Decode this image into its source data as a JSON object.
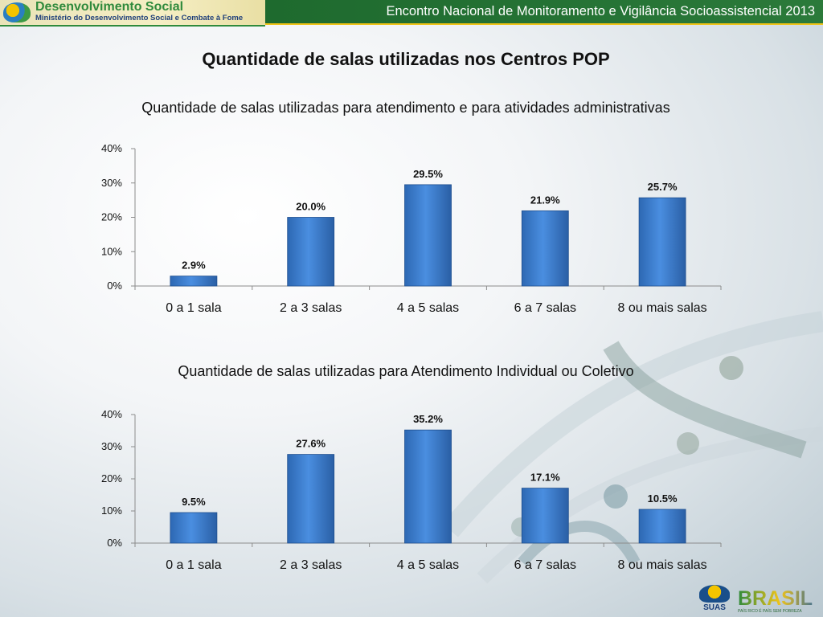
{
  "header": {
    "brand_title": "Desenvolvimento Social",
    "brand_subtitle": "Ministério do Desenvolvimento Social e Combate à Fome",
    "event_title": "Encontro Nacional de Monitoramento e Vigilância Socioassistencial 2013"
  },
  "page_title": "Quantidade de salas utilizadas nos Centros POP",
  "chart_data": [
    {
      "type": "bar",
      "title": "Quantidade de salas utilizadas para atendimento e para atividades administrativas",
      "categories": [
        "0 a 1 sala",
        "2 a 3 salas",
        "4 a 5 salas",
        "6 a 7 salas",
        "8 ou mais salas"
      ],
      "values": [
        2.9,
        20.0,
        29.5,
        21.9,
        25.7
      ],
      "value_labels": [
        "2.9%",
        "20.0%",
        "29.5%",
        "21.9%",
        "25.7%"
      ],
      "yticks": [
        "0%",
        "10%",
        "20%",
        "30%",
        "40%"
      ],
      "ylim": [
        0,
        40
      ],
      "xlabel": "",
      "ylabel": "",
      "bar_color": "#3a7ccd",
      "grid": false
    },
    {
      "type": "bar",
      "title": "Quantidade de salas utilizadas para Atendimento Individual ou Coletivo",
      "categories": [
        "0 a 1 sala",
        "2 a 3 salas",
        "4 a 5 salas",
        "6 a 7 salas",
        "8 ou mais salas"
      ],
      "values": [
        9.5,
        27.6,
        35.2,
        17.1,
        10.5
      ],
      "value_labels": [
        "9.5%",
        "27.6%",
        "35.2%",
        "17.1%",
        "10.5%"
      ],
      "yticks": [
        "0%",
        "10%",
        "20%",
        "30%",
        "40%"
      ],
      "ylim": [
        0,
        40
      ],
      "xlabel": "",
      "ylabel": "",
      "bar_color": "#3a7ccd",
      "grid": false
    }
  ],
  "footer": {
    "logo1_text": "SUAS",
    "logo2_text": "BRASIL",
    "logo2_sub": "PAÍS RICO É PAÍS SEM POBREZA"
  }
}
